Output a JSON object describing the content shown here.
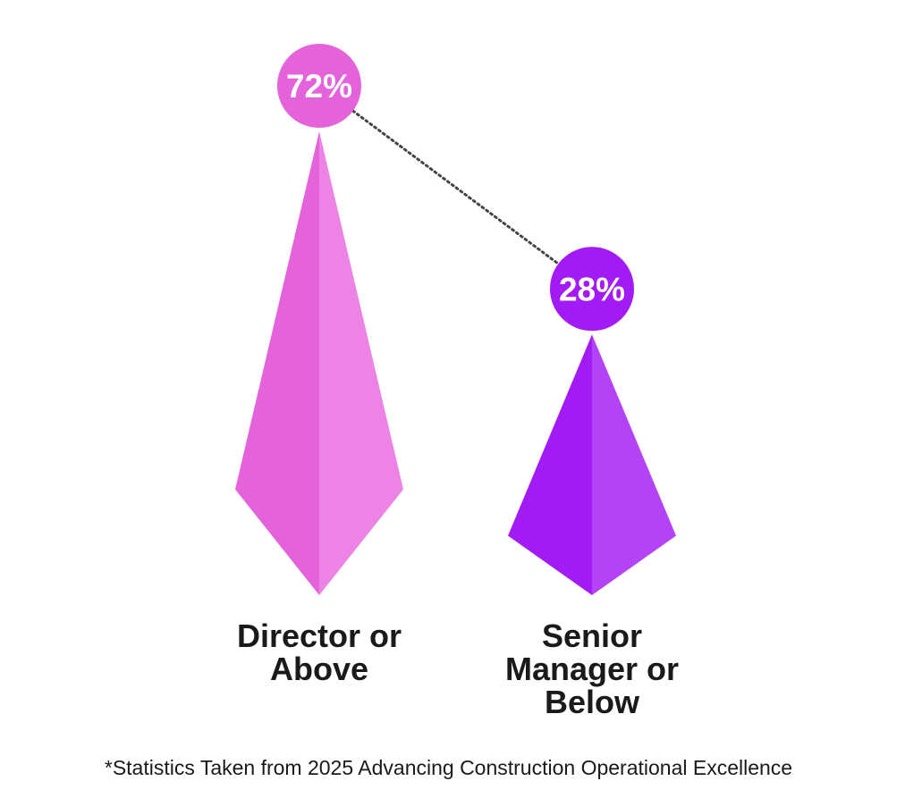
{
  "chart_data": {
    "type": "bar",
    "categories": [
      "Director or Above",
      "Senior Manager or Below"
    ],
    "values": [
      72,
      28
    ],
    "value_labels": [
      "72%",
      "28%"
    ],
    "label_lines": [
      [
        "Director or",
        "Above"
      ],
      [
        "Senior",
        "Manager or",
        "Below"
      ]
    ],
    "unit": "%",
    "colors": {
      "director": {
        "dark": "#e462da",
        "light": "#ed83e4"
      },
      "manager": {
        "dark": "#a31bf4",
        "light": "#b543f6"
      },
      "connector": "#444444"
    },
    "ylim": [
      0,
      72
    ]
  },
  "footnote": "*Statistics Taken from 2025 Advancing Construction Operational Excellence"
}
